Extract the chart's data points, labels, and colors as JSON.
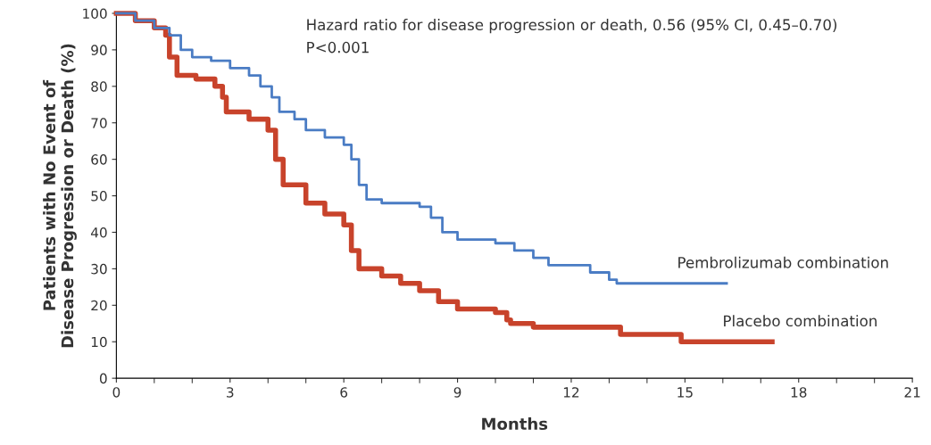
{
  "chart_data": {
    "type": "step",
    "xlabel": "Months",
    "ylabel": "Patients with No Event of\nDisease Progression or Death (%)",
    "annotations": [
      "Hazard ratio for disease progression or death, 0.56 (95% CI, 0.45–0.70)",
      "P<0.001"
    ],
    "xlim": [
      0,
      21
    ],
    "xticks": [
      0,
      3,
      6,
      9,
      12,
      15,
      18,
      21
    ],
    "ylim": [
      0,
      100
    ],
    "yticks": [
      0,
      10,
      20,
      30,
      40,
      50,
      60,
      70,
      80,
      90,
      100
    ],
    "grid": false,
    "legend": false,
    "series": [
      {
        "name": "Pembrolizumab combination",
        "color": "#4a7cc4",
        "x": [
          0,
          0.5,
          1,
          1.4,
          1.7,
          2,
          2.5,
          3,
          3.5,
          3.8,
          4.1,
          4.3,
          4.7,
          5,
          5.5,
          6,
          6.2,
          6.4,
          6.6,
          7,
          8,
          8.3,
          8.6,
          9,
          10,
          10.5,
          11,
          11.4,
          12,
          12.5,
          13,
          13.2,
          16.1
        ],
        "values": [
          100,
          98,
          96,
          94,
          90,
          88,
          87,
          85,
          83,
          80,
          77,
          73,
          71,
          68,
          66,
          64,
          60,
          53,
          49,
          48,
          47,
          44,
          40,
          38,
          37,
          35,
          33,
          31,
          31,
          29,
          27,
          26,
          26
        ]
      },
      {
        "name": "Placebo combination",
        "color": "#c8432b",
        "x": [
          0,
          0.5,
          1,
          1.3,
          1.4,
          1.6,
          2.1,
          2.6,
          2.8,
          2.9,
          3.5,
          4,
          4.2,
          4.4,
          5,
          5.5,
          6,
          6.2,
          6.4,
          7,
          7.5,
          8,
          8.5,
          9,
          10,
          10.3,
          10.4,
          11,
          13.2,
          13.3,
          14.8,
          14.9,
          17.3
        ],
        "values": [
          100,
          98,
          96,
          94,
          88,
          83,
          82,
          80,
          77,
          73,
          71,
          68,
          60,
          53,
          48,
          45,
          42,
          35,
          30,
          28,
          26,
          24,
          21,
          19,
          18,
          16,
          15,
          14,
          14,
          12,
          12,
          10,
          10
        ]
      }
    ]
  }
}
